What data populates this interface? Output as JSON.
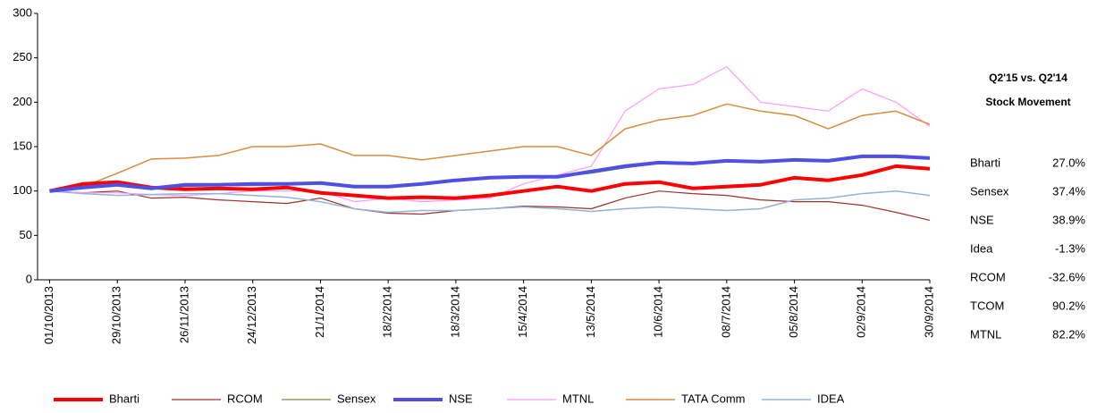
{
  "chart_data": {
    "type": "line",
    "x": [
      "2013-10-01",
      "2013-10-15",
      "2013-10-29",
      "2013-11-12",
      "2013-11-26",
      "2013-12-10",
      "2013-12-24",
      "2014-01-07",
      "2014-01-21",
      "2014-02-04",
      "2014-02-18",
      "2014-03-04",
      "2014-03-18",
      "2014-04-01",
      "2014-04-15",
      "2014-04-29",
      "2014-05-13",
      "2014-05-27",
      "2014-06-10",
      "2014-06-24",
      "2014-07-08",
      "2014-07-22",
      "2014-08-05",
      "2014-08-19",
      "2014-09-02",
      "2014-09-16",
      "2014-09-30"
    ],
    "xlim": [
      "2013-09-26",
      "2014-09-30"
    ],
    "xticks": [
      {
        "value": "2013-10-01",
        "label": "01/10/2013"
      },
      {
        "value": "2013-10-29",
        "label": "29/10/2013"
      },
      {
        "value": "2013-11-26",
        "label": "26/11/2013"
      },
      {
        "value": "2013-12-24",
        "label": "24/12/2013"
      },
      {
        "value": "2014-01-21",
        "label": "21/1/2014"
      },
      {
        "value": "2014-02-18",
        "label": "18/2/2014"
      },
      {
        "value": "2014-03-18",
        "label": "18/3/2014"
      },
      {
        "value": "2014-04-15",
        "label": "15/4/2014"
      },
      {
        "value": "2014-05-13",
        "label": "13/5/2014"
      },
      {
        "value": "2014-06-10",
        "label": "10/6/2014"
      },
      {
        "value": "2014-07-08",
        "label": "08/7/2014"
      },
      {
        "value": "2014-08-05",
        "label": "05/8/2014"
      },
      {
        "value": "2014-09-02",
        "label": "02/9/2014"
      },
      {
        "value": "2014-09-30",
        "label": "30/9/2014"
      }
    ],
    "ylim": [
      0,
      300
    ],
    "yticks": [
      0,
      50,
      100,
      150,
      200,
      250,
      300
    ],
    "series": [
      {
        "name": "Bharti",
        "color": "#ff0000",
        "width": 4,
        "values": [
          100,
          108,
          110,
          104,
          102,
          103,
          102,
          104,
          98,
          95,
          92,
          93,
          92,
          95,
          100,
          105,
          100,
          108,
          110,
          103,
          105,
          107,
          115,
          112,
          118,
          128,
          125
        ]
      },
      {
        "name": "RCOM",
        "color": "#a0302a",
        "width": 1.2,
        "values": [
          100,
          98,
          100,
          92,
          93,
          90,
          88,
          86,
          92,
          80,
          75,
          74,
          78,
          80,
          83,
          82,
          80,
          92,
          100,
          97,
          95,
          90,
          88,
          88,
          84,
          76,
          67
        ]
      },
      {
        "name": "Sensex",
        "color": "#77933c",
        "width": 1.2,
        "values": [
          100,
          104,
          107,
          104,
          105,
          106,
          106,
          107,
          108,
          105,
          105,
          108,
          112,
          115,
          116,
          116,
          120,
          126,
          131,
          130,
          134,
          133,
          135,
          133,
          138,
          138,
          136
        ]
      },
      {
        "name": "NSE",
        "color": "#4f4fe6",
        "width": 4,
        "values": [
          100,
          104,
          107,
          103,
          107,
          107,
          108,
          108,
          109,
          105,
          105,
          108,
          112,
          115,
          116,
          116,
          122,
          128,
          132,
          131,
          134,
          133,
          135,
          134,
          139,
          139,
          137
        ]
      },
      {
        "name": "MTNL",
        "color": "#ff99ff",
        "width": 1.2,
        "values": [
          100,
          98,
          98,
          96,
          95,
          97,
          100,
          100,
          100,
          88,
          92,
          88,
          90,
          92,
          108,
          118,
          128,
          190,
          215,
          220,
          240,
          200,
          195,
          190,
          215,
          200,
          173
        ]
      },
      {
        "name": "TATA Comm",
        "color": "#d98c3a",
        "width": 1.5,
        "values": [
          100,
          105,
          120,
          136,
          137,
          140,
          150,
          150,
          153,
          140,
          140,
          135,
          140,
          145,
          150,
          150,
          140,
          170,
          180,
          185,
          198,
          190,
          185,
          170,
          185,
          190,
          175
        ]
      },
      {
        "name": "IDEA",
        "color": "#95b3d7",
        "width": 1.5,
        "values": [
          100,
          97,
          95,
          96,
          97,
          97,
          95,
          93,
          88,
          80,
          76,
          78,
          78,
          80,
          82,
          80,
          77,
          80,
          82,
          80,
          78,
          80,
          90,
          92,
          97,
          100,
          95
        ]
      }
    ],
    "summary": {
      "title": "Q2'15 vs. Q2'14",
      "subtitle": "Stock Movement",
      "rows": [
        [
          "Bharti",
          "27.0%"
        ],
        [
          "Sensex",
          "37.4%"
        ],
        [
          "NSE",
          "38.9%"
        ],
        [
          "Idea",
          "-1.3%"
        ],
        [
          "RCOM",
          "-32.6%"
        ],
        [
          "TCOM",
          "90.2%"
        ],
        [
          "MTNL",
          "82.2%"
        ]
      ]
    }
  }
}
